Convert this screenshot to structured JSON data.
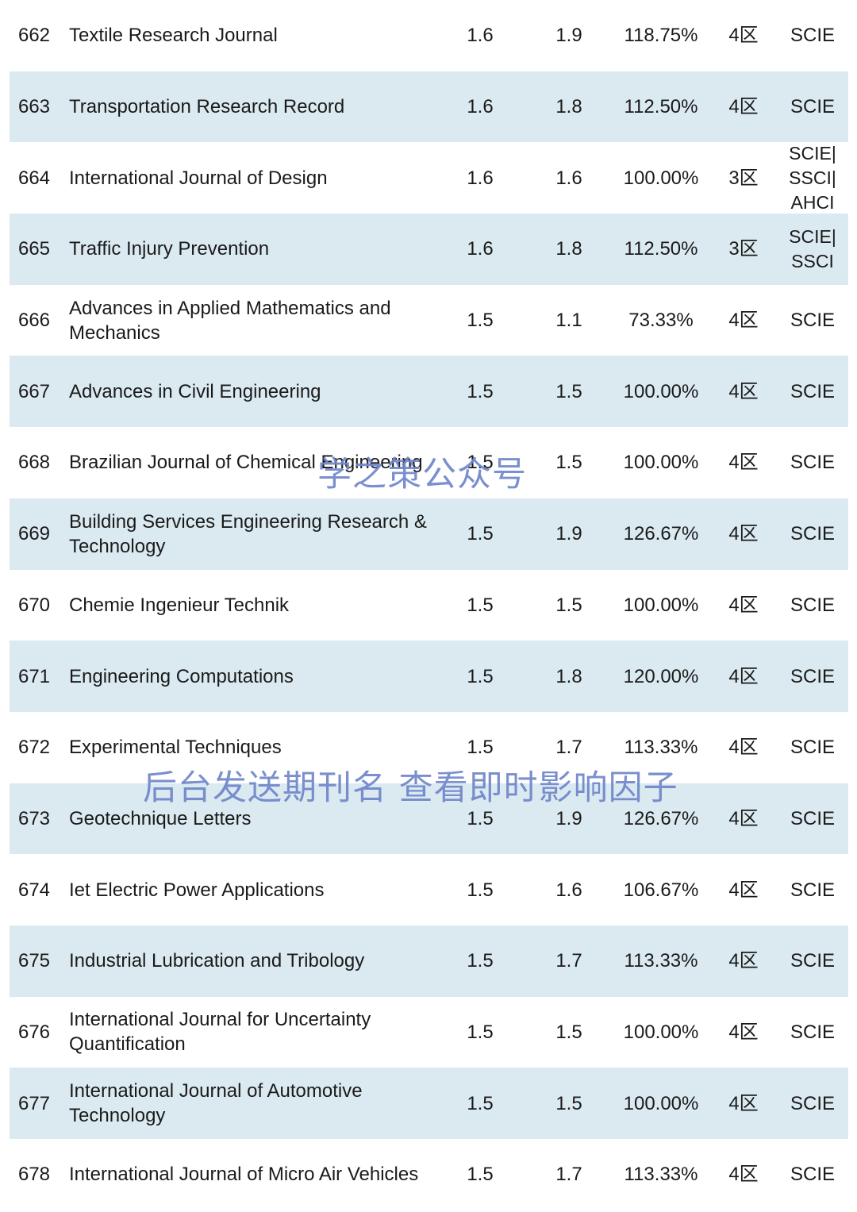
{
  "table": {
    "rows": [
      {
        "rank": "662",
        "title": "Textile Research Journal",
        "if1": "1.6",
        "if2": "1.9",
        "pct": "118.75%",
        "zone": "4区",
        "index": "SCIE"
      },
      {
        "rank": "663",
        "title": "Transportation Research Record",
        "if1": "1.6",
        "if2": "1.8",
        "pct": "112.50%",
        "zone": "4区",
        "index": "SCIE"
      },
      {
        "rank": "664",
        "title": "International Journal of Design",
        "if1": "1.6",
        "if2": "1.6",
        "pct": "100.00%",
        "zone": "3区",
        "index": "SCIE|\nSSCI|\nAHCI"
      },
      {
        "rank": "665",
        "title": "Traffic Injury Prevention",
        "if1": "1.6",
        "if2": "1.8",
        "pct": "112.50%",
        "zone": "3区",
        "index": "SCIE|\nSSCI"
      },
      {
        "rank": "666",
        "title": "Advances in Applied Mathematics and Mechanics",
        "if1": "1.5",
        "if2": "1.1",
        "pct": "73.33%",
        "zone": "4区",
        "index": "SCIE"
      },
      {
        "rank": "667",
        "title": "Advances in Civil Engineering",
        "if1": "1.5",
        "if2": "1.5",
        "pct": "100.00%",
        "zone": "4区",
        "index": "SCIE"
      },
      {
        "rank": "668",
        "title": "Brazilian Journal of Chemical Engineering",
        "if1": "1.5",
        "if2": "1.5",
        "pct": "100.00%",
        "zone": "4区",
        "index": "SCIE"
      },
      {
        "rank": "669",
        "title": "Building Services Engineering Research & Technology",
        "if1": "1.5",
        "if2": "1.9",
        "pct": "126.67%",
        "zone": "4区",
        "index": "SCIE"
      },
      {
        "rank": "670",
        "title": "Chemie Ingenieur Technik",
        "if1": "1.5",
        "if2": "1.5",
        "pct": "100.00%",
        "zone": "4区",
        "index": "SCIE"
      },
      {
        "rank": "671",
        "title": "Engineering Computations",
        "if1": "1.5",
        "if2": "1.8",
        "pct": "120.00%",
        "zone": "4区",
        "index": "SCIE"
      },
      {
        "rank": "672",
        "title": "Experimental Techniques",
        "if1": "1.5",
        "if2": "1.7",
        "pct": "113.33%",
        "zone": "4区",
        "index": "SCIE"
      },
      {
        "rank": "673",
        "title": "Geotechnique Letters",
        "if1": "1.5",
        "if2": "1.9",
        "pct": "126.67%",
        "zone": "4区",
        "index": "SCIE"
      },
      {
        "rank": "674",
        "title": "Iet Electric Power Applications",
        "if1": "1.5",
        "if2": "1.6",
        "pct": "106.67%",
        "zone": "4区",
        "index": "SCIE"
      },
      {
        "rank": "675",
        "title": "Industrial Lubrication and Tribology",
        "if1": "1.5",
        "if2": "1.7",
        "pct": "113.33%",
        "zone": "4区",
        "index": "SCIE"
      },
      {
        "rank": "676",
        "title": "International Journal for Uncertainty Quantification",
        "if1": "1.5",
        "if2": "1.5",
        "pct": "100.00%",
        "zone": "4区",
        "index": "SCIE"
      },
      {
        "rank": "677",
        "title": "International Journal of Automotive Technology",
        "if1": "1.5",
        "if2": "1.5",
        "pct": "100.00%",
        "zone": "4区",
        "index": "SCIE"
      },
      {
        "rank": "678",
        "title": "International Journal of Micro Air Vehicles",
        "if1": "1.5",
        "if2": "1.7",
        "pct": "113.33%",
        "zone": "4区",
        "index": "SCIE"
      }
    ]
  },
  "watermarks": {
    "account": "学之策公众号",
    "instruction": "后台发送期刊名 查看即时影响因子"
  },
  "colors": {
    "alt_row_bg": "#dbeaf1",
    "watermark": "#6f86c9"
  }
}
